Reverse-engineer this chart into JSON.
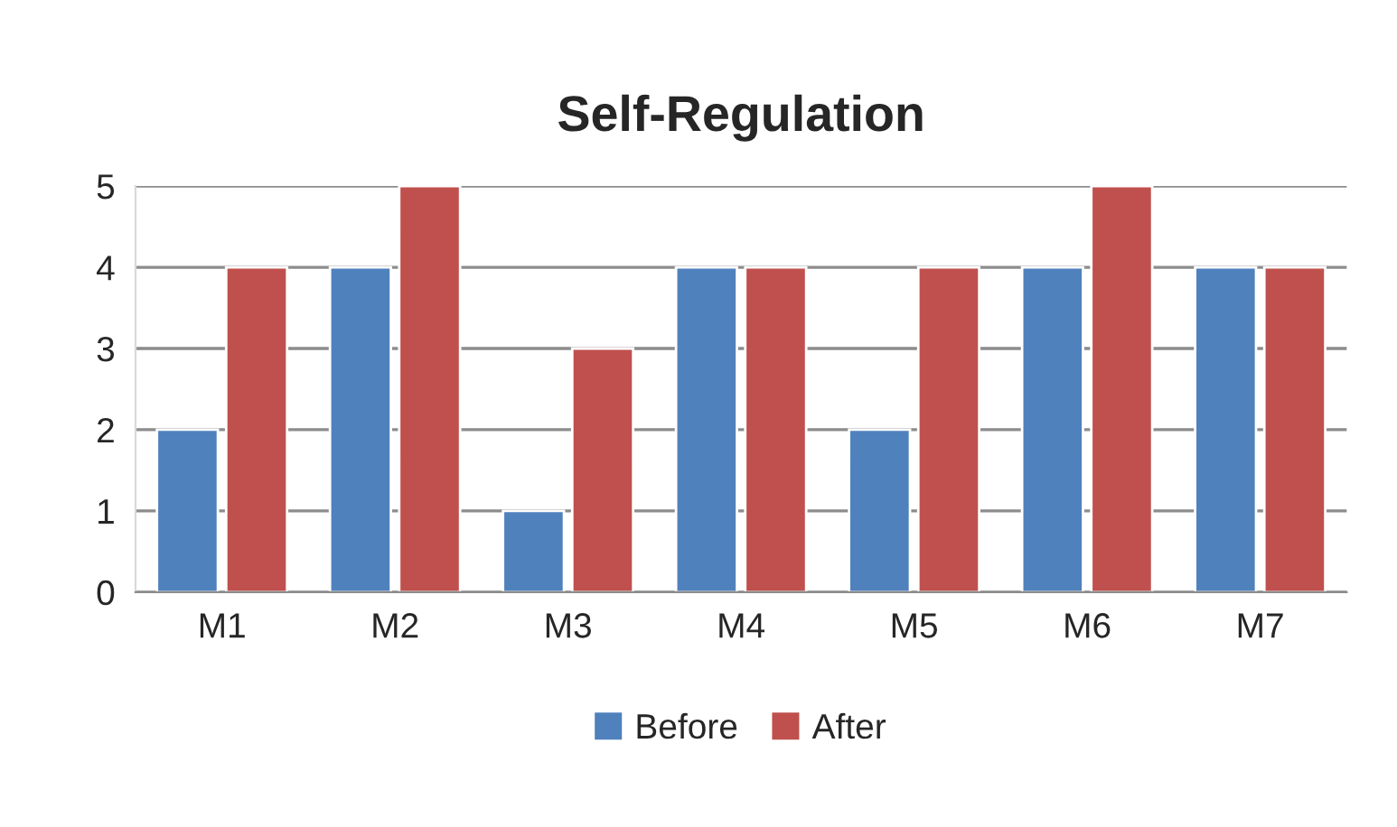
{
  "chart_data": {
    "type": "bar",
    "title": "Self-Regulation",
    "categories": [
      "M1",
      "M2",
      "M3",
      "M4",
      "M5",
      "M6",
      "M7"
    ],
    "series": [
      {
        "name": "Before",
        "color": "#4f81bd",
        "values": [
          2,
          4,
          1,
          4,
          2,
          4,
          4
        ]
      },
      {
        "name": "After",
        "color": "#c0504d",
        "values": [
          4,
          5,
          3,
          4,
          4,
          5,
          4
        ]
      }
    ],
    "ylim": [
      0,
      5
    ],
    "yticks": [
      0,
      1,
      2,
      3,
      4,
      5
    ],
    "grid": "y",
    "legend": "bottom"
  }
}
